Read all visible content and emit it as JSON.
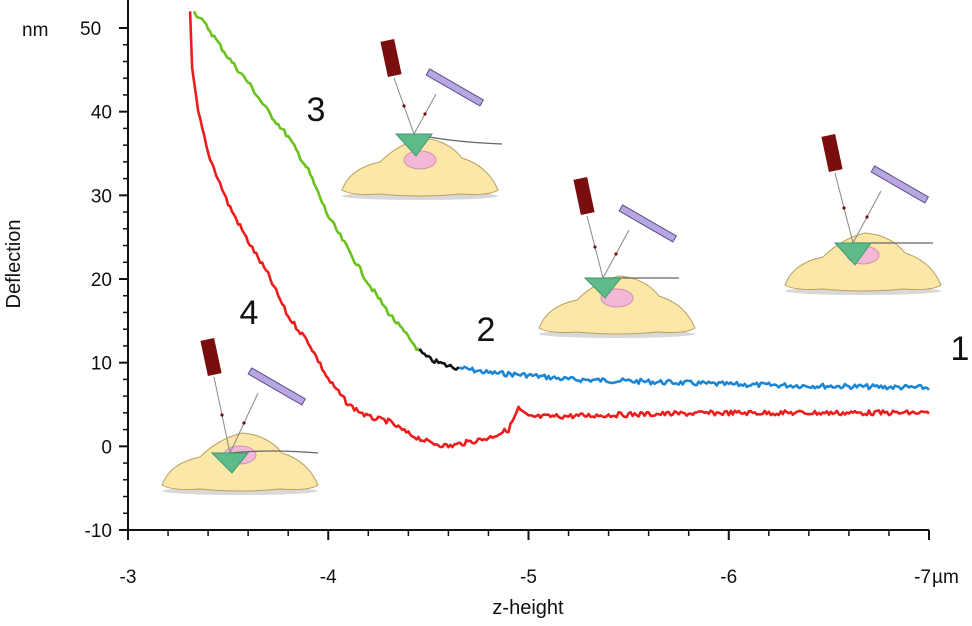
{
  "chart_data": {
    "type": "line",
    "xlabel": "z-height",
    "ylabel": "Deflection",
    "x_unit": "µm",
    "y_unit": "nm",
    "xlim": [
      -3,
      -7
    ],
    "ylim": [
      -10,
      50
    ],
    "x_ticks": [
      "-3",
      "-4",
      "-5",
      "-6",
      "-7"
    ],
    "y_ticks": [
      "-10",
      "0",
      "10",
      "20",
      "30",
      "40",
      "50"
    ],
    "grid": false,
    "series": [
      {
        "color": "#1a86d6",
        "role": "approach, non-contact",
        "points": [
          [
            -4.65,
            9.4
          ],
          [
            -4.8,
            8.8
          ],
          [
            -5.0,
            8.5
          ],
          [
            -5.2,
            8.0
          ],
          [
            -5.5,
            7.8
          ],
          [
            -6.0,
            7.4
          ],
          [
            -6.5,
            7.2
          ],
          [
            -7.0,
            7.0
          ]
        ]
      },
      {
        "color": "#111111",
        "role": "contact point",
        "points": [
          [
            -4.45,
            11.5
          ],
          [
            -4.5,
            10.5
          ],
          [
            -4.55,
            10.0
          ],
          [
            -4.6,
            9.6
          ],
          [
            -4.65,
            9.4
          ]
        ]
      },
      {
        "color": "#6ac21c",
        "role": "indentation",
        "points": [
          [
            -3.33,
            52.0
          ],
          [
            -3.4,
            50.0
          ],
          [
            -3.5,
            46.5
          ],
          [
            -3.6,
            43.5
          ],
          [
            -3.7,
            40.0
          ],
          [
            -3.8,
            37.0
          ],
          [
            -3.9,
            33.0
          ],
          [
            -4.0,
            27.5
          ],
          [
            -4.1,
            23.5
          ],
          [
            -4.2,
            19.5
          ],
          [
            -4.3,
            16.0
          ],
          [
            -4.45,
            11.5
          ]
        ]
      },
      {
        "color": "#ee1c1c",
        "role": "retraction",
        "points": [
          [
            -3.31,
            52.0
          ],
          [
            -3.32,
            45.0
          ],
          [
            -3.35,
            40.0
          ],
          [
            -3.4,
            35.0
          ],
          [
            -3.5,
            29.0
          ],
          [
            -3.6,
            24.5
          ],
          [
            -3.7,
            20.5
          ],
          [
            -3.8,
            15.5
          ],
          [
            -3.9,
            12.5
          ],
          [
            -4.0,
            8.0
          ],
          [
            -4.1,
            5.0
          ],
          [
            -4.2,
            3.5
          ],
          [
            -4.3,
            3.0
          ],
          [
            -4.4,
            1.5
          ],
          [
            -4.5,
            0.5
          ],
          [
            -4.6,
            0.0
          ],
          [
            -4.7,
            0.5
          ],
          [
            -4.8,
            1.0
          ],
          [
            -4.9,
            2.0
          ],
          [
            -4.95,
            4.5
          ],
          [
            -5.0,
            3.5
          ],
          [
            -5.5,
            3.8
          ],
          [
            -6.0,
            4.0
          ],
          [
            -6.5,
            4.0
          ],
          [
            -7.0,
            4.0
          ]
        ]
      }
    ],
    "annotations": [
      "1",
      "2",
      "3",
      "4"
    ],
    "illustration": "AFM cantilever above cell at each stage"
  }
}
